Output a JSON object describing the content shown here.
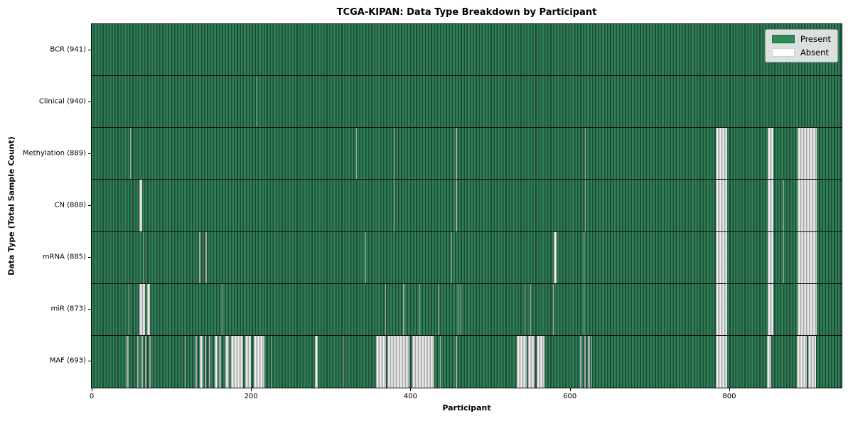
{
  "figure": {
    "title": "TCGA-KIPAN: Data Type Breakdown by Participant",
    "xlabel": "Participant",
    "ylabel": "Data Type (Total Sample Count)"
  },
  "legend": {
    "position": "upper right",
    "items": [
      {
        "label": "Present",
        "color": "#2e8b57"
      },
      {
        "label": "Absent",
        "color": "#ffffff"
      }
    ]
  },
  "chart_data": {
    "type": "heatmap",
    "title": "TCGA-KIPAN: Data Type Breakdown by Participant",
    "xlabel": "Participant",
    "ylabel": "Data Type (Total Sample Count)",
    "x_range": [
      0,
      941
    ],
    "x_ticks": [
      0,
      200,
      400,
      600,
      800
    ],
    "n_participants": 941,
    "grid": "horizontal row separators, black",
    "legend_position": "upper right",
    "colors": {
      "present": "#2e8b57",
      "absent": "#ffffff"
    },
    "rows": [
      {
        "name": "BCR",
        "label": "BCR (941)",
        "present_count": 941,
        "absent_ranges": []
      },
      {
        "name": "Clinical",
        "label": "Clinical (940)",
        "present_count": 940,
        "absent_ranges": [
          [
            207,
            208
          ]
        ]
      },
      {
        "name": "Methylation",
        "label": "Methylation (889)",
        "present_count": 889,
        "absent_ranges": [
          [
            48,
            49
          ],
          [
            332,
            333
          ],
          [
            380,
            381
          ],
          [
            457,
            458
          ],
          [
            619,
            620
          ],
          [
            783,
            797
          ],
          [
            848,
            855
          ],
          [
            886,
            910
          ]
        ]
      },
      {
        "name": "CN",
        "label": "CN (888)",
        "present_count": 888,
        "absent_ranges": [
          [
            60,
            63
          ],
          [
            380,
            381
          ],
          [
            457,
            458
          ],
          [
            619,
            620
          ],
          [
            783,
            797
          ],
          [
            848,
            855
          ],
          [
            868,
            869
          ],
          [
            886,
            910
          ]
        ]
      },
      {
        "name": "mRNA",
        "label": "mRNA (885)",
        "present_count": 885,
        "absent_ranges": [
          [
            65,
            66
          ],
          [
            135,
            136
          ],
          [
            143,
            144
          ],
          [
            343,
            344
          ],
          [
            451,
            452
          ],
          [
            580,
            583
          ],
          [
            617,
            618
          ],
          [
            783,
            797
          ],
          [
            848,
            855
          ],
          [
            868,
            869
          ],
          [
            886,
            910
          ]
        ]
      },
      {
        "name": "miR",
        "label": "miR (873)",
        "present_count": 873,
        "absent_ranges": [
          [
            46,
            47
          ],
          [
            60,
            67
          ],
          [
            70,
            73
          ],
          [
            163,
            164
          ],
          [
            368,
            369
          ],
          [
            391,
            392
          ],
          [
            411,
            412
          ],
          [
            434,
            435
          ],
          [
            459,
            460
          ],
          [
            463,
            464
          ],
          [
            543,
            544
          ],
          [
            550,
            551
          ],
          [
            579,
            580
          ],
          [
            617,
            618
          ],
          [
            783,
            797
          ],
          [
            848,
            855
          ],
          [
            886,
            910
          ]
        ]
      },
      {
        "name": "MAF",
        "label": "MAF (693)",
        "present_count": 693,
        "absent_ranges": [
          [
            44,
            46
          ],
          [
            57,
            59
          ],
          [
            62,
            64
          ],
          [
            67,
            69
          ],
          [
            72,
            74
          ],
          [
            117,
            118
          ],
          [
            130,
            132
          ],
          [
            136,
            139
          ],
          [
            142,
            144
          ],
          [
            147,
            149
          ],
          [
            154,
            158
          ],
          [
            160,
            162
          ],
          [
            168,
            172
          ],
          [
            175,
            190
          ],
          [
            193,
            200
          ],
          [
            203,
            217
          ],
          [
            225,
            226
          ],
          [
            280,
            284
          ],
          [
            315,
            316
          ],
          [
            357,
            369
          ],
          [
            371,
            399
          ],
          [
            402,
            430
          ],
          [
            437,
            438
          ],
          [
            457,
            458
          ],
          [
            533,
            546
          ],
          [
            548,
            556
          ],
          [
            558,
            568
          ],
          [
            613,
            615
          ],
          [
            618,
            620
          ],
          [
            623,
            625
          ],
          [
            627,
            628
          ],
          [
            783,
            797
          ],
          [
            847,
            853
          ],
          [
            885,
            897
          ],
          [
            899,
            909
          ]
        ]
      }
    ]
  }
}
